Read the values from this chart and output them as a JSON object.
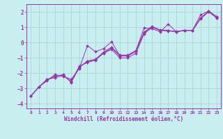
{
  "background_color": "#c8eef0",
  "grid_color": "#aad4d8",
  "line_color": "#9933aa",
  "marker": "D",
  "markersize": 2.0,
  "xlabel": "Windchill (Refroidissement éolien,°C)",
  "xlim": [
    -0.5,
    23.5
  ],
  "ylim": [
    -4.3,
    2.5
  ],
  "yticks": [
    -4,
    -3,
    -2,
    -1,
    0,
    1,
    2
  ],
  "xticks": [
    0,
    1,
    2,
    3,
    4,
    5,
    6,
    7,
    8,
    9,
    10,
    11,
    12,
    13,
    14,
    15,
    16,
    17,
    18,
    19,
    20,
    21,
    22,
    23
  ],
  "series": [
    {
      "x": [
        0,
        1,
        2,
        3,
        4,
        5,
        6,
        7,
        8,
        9,
        10,
        11,
        12,
        13,
        14,
        15,
        16,
        17,
        18,
        19,
        20,
        21,
        22,
        23
      ],
      "y": [
        -3.5,
        -2.9,
        -2.5,
        -2.1,
        -2.2,
        -2.4,
        -1.7,
        -0.2,
        -0.6,
        -0.4,
        0.05,
        -0.85,
        -0.85,
        -0.55,
        0.95,
        0.9,
        0.7,
        1.2,
        0.7,
        0.8,
        0.8,
        1.8,
        2.05,
        1.7
      ]
    },
    {
      "x": [
        0,
        1,
        2,
        3,
        4,
        5,
        6,
        7,
        8,
        9,
        10,
        11,
        12,
        13,
        14,
        15,
        16,
        17,
        18,
        19,
        20,
        21,
        22,
        23
      ],
      "y": [
        -3.5,
        -2.9,
        -2.4,
        -2.3,
        -2.15,
        -2.55,
        -1.55,
        -1.3,
        -1.15,
        -0.7,
        -0.45,
        -1.0,
        -1.0,
        -0.7,
        0.55,
        1.0,
        0.78,
        0.75,
        0.72,
        0.78,
        0.78,
        1.55,
        2.0,
        1.6
      ]
    },
    {
      "x": [
        0,
        1,
        2,
        3,
        4,
        5,
        6,
        7,
        8,
        9,
        10,
        11,
        12,
        13,
        14,
        15,
        16,
        17,
        18,
        19,
        20,
        21,
        22,
        23
      ],
      "y": [
        -3.5,
        -2.9,
        -2.45,
        -2.2,
        -2.1,
        -2.6,
        -1.62,
        -1.2,
        -1.1,
        -0.62,
        -0.3,
        -0.82,
        -0.82,
        -0.52,
        0.68,
        1.05,
        0.82,
        0.8,
        0.68,
        0.8,
        0.8,
        1.6,
        2.05,
        1.62
      ]
    },
    {
      "x": [
        0,
        1,
        2,
        3,
        4,
        5,
        6,
        7,
        8,
        9,
        10,
        11,
        12,
        13,
        14,
        15,
        16,
        17,
        18,
        19,
        20,
        21,
        22,
        23
      ],
      "y": [
        -3.5,
        -2.9,
        -2.42,
        -2.18,
        -2.12,
        -2.58,
        -1.6,
        -1.25,
        -1.12,
        -0.66,
        -0.37,
        -0.88,
        -0.88,
        -0.58,
        0.62,
        1.02,
        0.8,
        0.78,
        0.7,
        0.79,
        0.79,
        1.58,
        2.02,
        1.61
      ]
    }
  ]
}
